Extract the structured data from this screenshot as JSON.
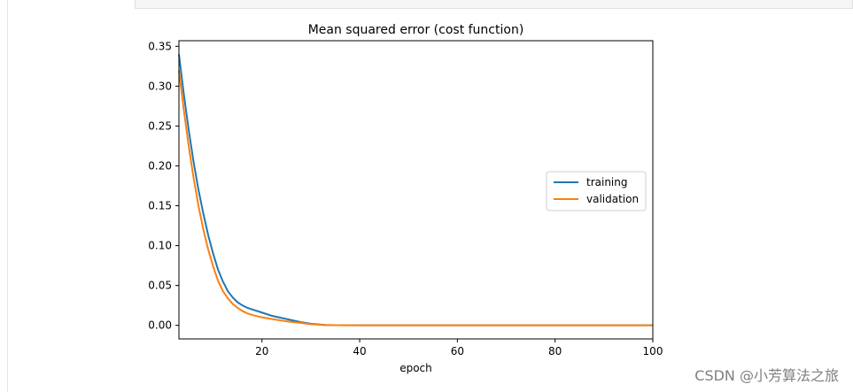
{
  "watermark": "CSDN @小芳算法之旅",
  "chart_data": {
    "type": "line",
    "title": "Mean squared error (cost function)",
    "xlabel": "epoch",
    "ylabel": "",
    "xlim": [
      3,
      100
    ],
    "ylim": [
      -0.017,
      0.357
    ],
    "x_ticks": [
      20,
      40,
      60,
      80,
      100
    ],
    "y_ticks": [
      0.0,
      0.05,
      0.1,
      0.15,
      0.2,
      0.25,
      0.3,
      0.35
    ],
    "x_tick_labels": [
      "20",
      "40",
      "60",
      "80",
      "100"
    ],
    "y_tick_labels": [
      "0.00",
      "0.05",
      "0.10",
      "0.15",
      "0.20",
      "0.25",
      "0.30",
      "0.35"
    ],
    "grid": false,
    "legend_position": "center-right",
    "series": [
      {
        "name": "training",
        "color": "#1f77b4",
        "x": [
          3,
          4,
          5,
          6,
          7,
          8,
          9,
          10,
          11,
          12,
          13,
          14,
          15,
          16,
          17,
          18,
          20,
          22,
          25,
          28,
          30,
          33,
          35,
          40,
          50,
          60,
          70,
          80,
          90,
          100
        ],
        "y": [
          0.34,
          0.29,
          0.245,
          0.205,
          0.17,
          0.14,
          0.113,
          0.09,
          0.07,
          0.055,
          0.043,
          0.035,
          0.029,
          0.025,
          0.022,
          0.02,
          0.016,
          0.012,
          0.008,
          0.004,
          0.002,
          0.0005,
          0.0002,
          0.0001,
          0.0,
          0.0,
          0.0,
          0.0,
          0.0,
          0.0
        ]
      },
      {
        "name": "validation",
        "color": "#ff7f0e",
        "x": [
          3,
          4,
          5,
          6,
          7,
          8,
          9,
          10,
          11,
          12,
          13,
          14,
          15,
          16,
          17,
          18,
          20,
          22,
          25,
          28,
          30,
          33,
          35,
          40,
          50,
          60,
          70,
          80,
          90,
          100
        ],
        "y": [
          0.32,
          0.27,
          0.225,
          0.185,
          0.15,
          0.12,
          0.095,
          0.074,
          0.056,
          0.043,
          0.034,
          0.027,
          0.022,
          0.018,
          0.015,
          0.013,
          0.01,
          0.008,
          0.005,
          0.003,
          0.0015,
          0.0004,
          0.0002,
          0.0001,
          0.0,
          0.0,
          0.0,
          0.0,
          0.0,
          0.0
        ]
      }
    ]
  }
}
